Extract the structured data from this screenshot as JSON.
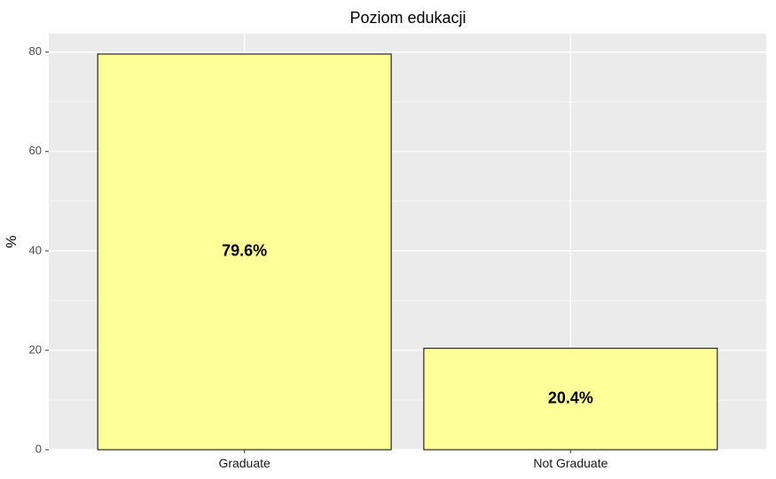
{
  "chart_data": {
    "type": "bar",
    "title": "Poziom edukacji",
    "xlabel": "",
    "ylabel": "%",
    "categories": [
      "Graduate",
      "Not Graduate"
    ],
    "values": [
      79.6,
      20.4
    ],
    "data_labels": [
      "79.6%",
      "20.4%"
    ],
    "ylim": [
      0,
      83.7
    ],
    "yticks": [
      0,
      20,
      40,
      60,
      80
    ],
    "ytick_labels": [
      "0",
      "20",
      "40",
      "60",
      "80"
    ],
    "grid": true,
    "legend": "none",
    "bar_fill": "#FFFF99",
    "bar_stroke": "#000000",
    "panel_background": "#EBEBEB",
    "grid_color": "#FFFFFF"
  }
}
